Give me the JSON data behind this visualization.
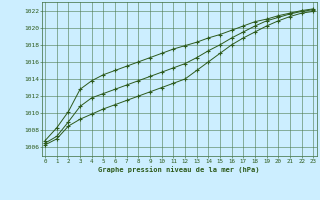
{
  "title": "Graphe pression niveau de la mer (hPa)",
  "background_color": "#cceeff",
  "grid_color": "#4d7a4d",
  "line_color": "#2d5a1b",
  "spine_color": "#3a6b3a",
  "x_ticks": [
    0,
    1,
    2,
    3,
    4,
    5,
    6,
    7,
    8,
    9,
    10,
    11,
    12,
    13,
    14,
    15,
    16,
    17,
    18,
    19,
    20,
    21,
    22,
    23
  ],
  "y_ticks": [
    1006,
    1008,
    1010,
    1012,
    1014,
    1016,
    1018,
    1020,
    1022
  ],
  "ylim": [
    1005.0,
    1023.0
  ],
  "xlim": [
    -0.3,
    23.3
  ],
  "series": {
    "min": [
      1006.3,
      1007.0,
      1008.5,
      1009.3,
      1009.9,
      1010.5,
      1011.0,
      1011.5,
      1012.0,
      1012.5,
      1013.0,
      1013.5,
      1014.0,
      1015.0,
      1016.0,
      1017.0,
      1018.0,
      1018.8,
      1019.5,
      1020.2,
      1020.8,
      1021.3,
      1021.7,
      1021.9
    ],
    "mid": [
      1006.5,
      1007.3,
      1009.0,
      1010.8,
      1011.8,
      1012.3,
      1012.8,
      1013.3,
      1013.8,
      1014.3,
      1014.8,
      1015.3,
      1015.8,
      1016.5,
      1017.3,
      1018.0,
      1018.8,
      1019.5,
      1020.2,
      1020.8,
      1021.2,
      1021.6,
      1021.9,
      1022.1
    ],
    "max": [
      1006.8,
      1008.3,
      1010.2,
      1012.8,
      1013.8,
      1014.5,
      1015.0,
      1015.5,
      1016.0,
      1016.5,
      1017.0,
      1017.5,
      1017.9,
      1018.3,
      1018.8,
      1019.2,
      1019.7,
      1020.2,
      1020.7,
      1021.0,
      1021.4,
      1021.7,
      1022.0,
      1022.2
    ]
  }
}
